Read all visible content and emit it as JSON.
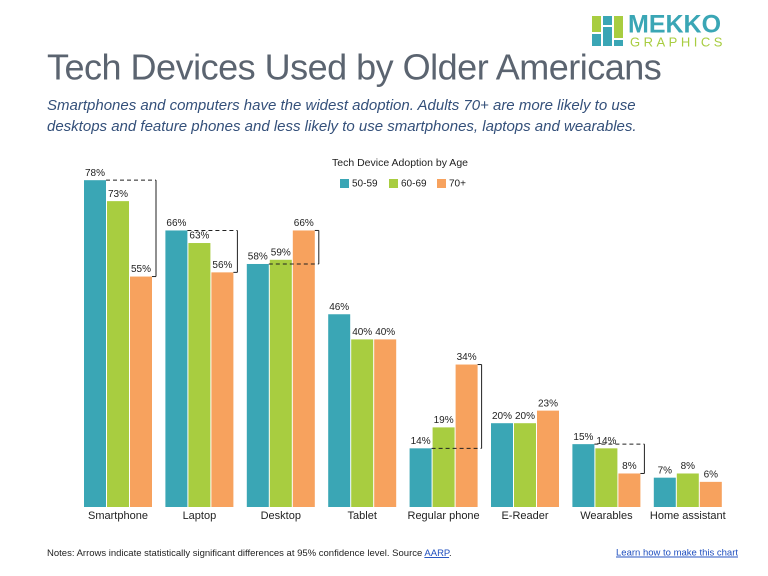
{
  "logo": {
    "name": "MEKKO",
    "tagline": "GRAPHICS"
  },
  "header": {
    "title": "Tech Devices Used by Older Americans",
    "subtitle": [
      "Smartphones and computers have the widest adoption.  Adults 70+ are more likely to use",
      "desktops and feature phones and less likely to use smartphones, laptops and wearables."
    ]
  },
  "chart_data": {
    "type": "bar",
    "title": "Tech Device Adoption by Age",
    "categories": [
      "Smartphone",
      "Laptop",
      "Desktop",
      "Tablet",
      "Regular phone",
      "E-Reader",
      "Wearables",
      "Home assistant"
    ],
    "series": [
      {
        "name": "50-59",
        "color": "#3aa6b5",
        "values": [
          78,
          66,
          58,
          46,
          14,
          20,
          15,
          7
        ],
        "value_labels": [
          "78%",
          "66%",
          "58%",
          "46%",
          "14%",
          "20%",
          "15%",
          "7%"
        ]
      },
      {
        "name": "60-69",
        "color": "#a8cd40",
        "values": [
          73,
          63,
          59,
          40,
          19,
          20,
          14,
          8
        ],
        "value_labels": [
          "73%",
          "63%",
          "59%",
          "40%",
          "19%",
          "20%",
          "14%",
          "8%"
        ]
      },
      {
        "name": "70+",
        "color": "#f7a25e",
        "values": [
          55,
          56,
          66,
          40,
          34,
          23,
          8,
          6
        ],
        "value_labels": [
          "55%",
          "56%",
          "66%",
          "40%",
          "34%",
          "23%",
          "8%",
          "6%"
        ]
      }
    ]
  },
  "notes": {
    "text": "Notes: Arrows indicate statistically significant differences at 95% confidence level.  Source",
    "source": "AARP",
    "end": "."
  },
  "link": "Learn how to make this chart"
}
